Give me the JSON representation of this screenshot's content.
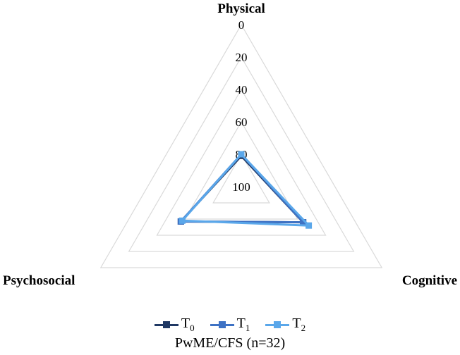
{
  "chart_data": {
    "type": "radar",
    "axes": [
      "Physical",
      "Cognitive",
      "Psychosocial"
    ],
    "radial_ticks": [
      "0",
      "20",
      "40",
      "60",
      "80",
      "100"
    ],
    "rlim": [
      0,
      100
    ],
    "reversed": true,
    "series": [
      {
        "name": "T",
        "subscript": "0",
        "color": "#1f3864",
        "values": [
          81,
          56,
          57
        ]
      },
      {
        "name": "T",
        "subscript": "1",
        "color": "#3e72c4",
        "values": [
          80,
          56,
          57
        ]
      },
      {
        "name": "T",
        "subscript": "2",
        "color": "#5aa7ea",
        "values": [
          80,
          52,
          58
        ]
      }
    ],
    "legend_position": "bottom",
    "caption": "PwME/CFS (n=32)",
    "grid": true
  }
}
